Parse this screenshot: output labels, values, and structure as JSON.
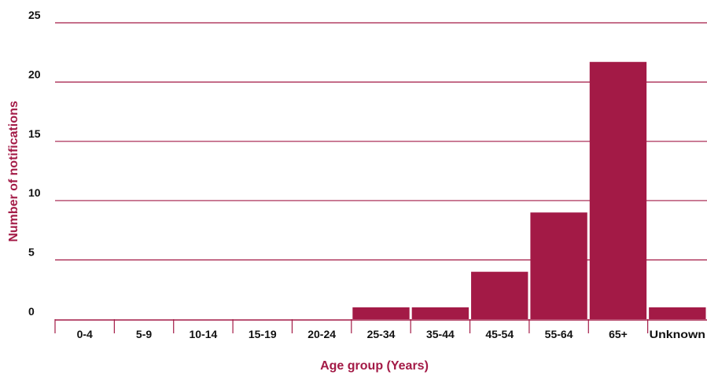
{
  "colors": {
    "accent": "#A31A46",
    "grid": "#A31A46",
    "text": "#111111"
  },
  "chart_data": {
    "type": "bar",
    "categories": [
      "0-4",
      "5-9",
      "10-14",
      "15-19",
      "20-24",
      "25-34",
      "35-44",
      "45-54",
      "55-64",
      "65+",
      "Unknown"
    ],
    "values": [
      0,
      0,
      0,
      0,
      0,
      1,
      1,
      4,
      9,
      21.7,
      1
    ],
    "xlabel": "Age group (Years)",
    "ylabel": "Number of notifications",
    "ylim": [
      0,
      25
    ],
    "yticks": [
      0,
      5,
      10,
      15,
      20,
      25
    ],
    "grid": "horizontal",
    "legend": "none"
  }
}
